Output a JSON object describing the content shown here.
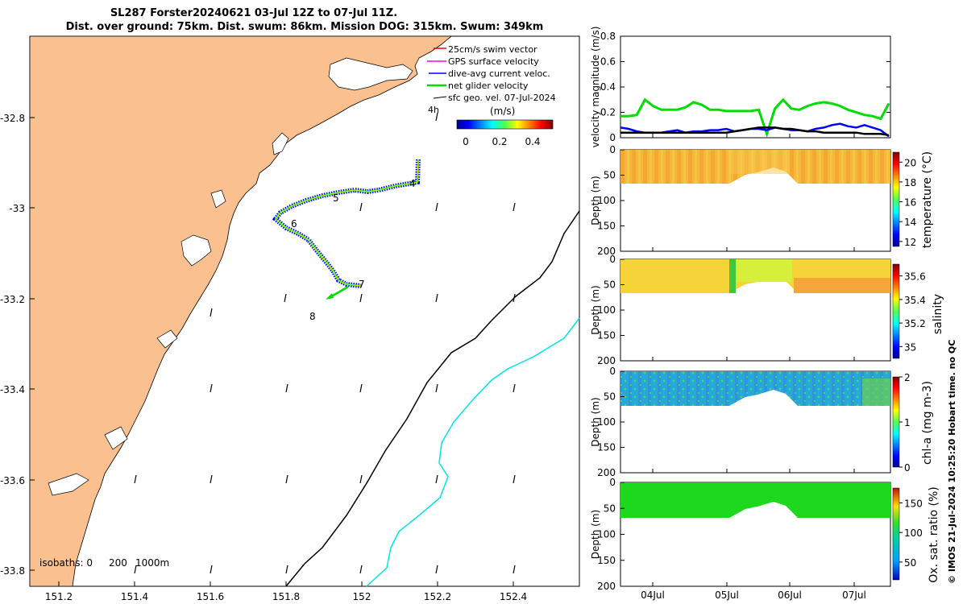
{
  "header": {
    "line1": "SL287 Forster20240621 03-Jul 12Z to 07-Jul 11Z.",
    "line2": "Dist. over ground: 75km. Dist. swum: 86km. Mission DOG: 315km. Swum: 349km"
  },
  "credit": "© IMOS 21-Jul-2024 10:25:20 Hobart time. no QC",
  "colors": {
    "land": "#fbc08f",
    "sea": "#ffffff",
    "swim_vector": "#ff0000",
    "gps_velocity": "#ff00ff",
    "dive_avg": "#0000ff",
    "net_velocity": "#00dd00",
    "isobath_200": "#000000",
    "isobath_1000": "#00e5e5"
  },
  "map": {
    "lon_ticks": [
      "151.2",
      "151.4",
      "151.6",
      "151.8",
      "152",
      "152.2",
      "152.4"
    ],
    "lat_ticks": [
      "-32.8",
      "-33",
      "-33.2",
      "-33.4",
      "-33.6",
      "-33.8"
    ],
    "legend": {
      "items": [
        "25cm/s swim vector",
        "GPS surface velocity",
        "dive-avg current veloc.",
        "net glider velocity",
        "sfc geo. vel. 07-Jul-2024"
      ],
      "hour_label": "4h",
      "unit": "(m/s)",
      "cb_ticks": [
        "0",
        "0.2",
        "0.4"
      ]
    },
    "isobaths_label": "isobaths: 0",
    "isobath_levels": [
      "200",
      "1000m"
    ],
    "day_labels": [
      "4",
      "5",
      "6",
      "7",
      "8"
    ]
  },
  "chart_data": [
    {
      "type": "line",
      "ylabel": "velocity magnitude (m/s)",
      "y_ticks": [
        "0",
        "0.2",
        "0.4",
        "0.6",
        "0.8"
      ],
      "ylim": [
        0,
        0.8
      ],
      "x_ticks": [
        "04Jul",
        "05Jul",
        "06Jul",
        "07Jul"
      ],
      "series": [
        {
          "name": "net glider velocity",
          "color": "#00dd00",
          "values": [
            0.17,
            0.17,
            0.18,
            0.3,
            0.25,
            0.22,
            0.22,
            0.22,
            0.24,
            0.28,
            0.26,
            0.22,
            0.22,
            0.21,
            0.21,
            0.21,
            0.21,
            0.22,
            0.03,
            0.23,
            0.3,
            0.23,
            0.22,
            0.25,
            0.27,
            0.28,
            0.27,
            0.25,
            0.22,
            0.2,
            0.18,
            0.17,
            0.15,
            0.27
          ]
        },
        {
          "name": "dive-avg current",
          "color": "#0000ff",
          "values": [
            0.08,
            0.07,
            0.05,
            0.04,
            0.04,
            0.04,
            0.05,
            0.06,
            0.04,
            0.05,
            0.05,
            0.06,
            0.06,
            0.07,
            0.05,
            0.06,
            0.07,
            0.07,
            0.06,
            0.08,
            0.07,
            0.06,
            0.06,
            0.05,
            0.07,
            0.08,
            0.1,
            0.11,
            0.09,
            0.08,
            0.1,
            0.08,
            0.06,
            0.01
          ]
        },
        {
          "name": "sfc geo. velocity",
          "color": "#000000",
          "values": [
            0.04,
            0.04,
            0.04,
            0.04,
            0.04,
            0.04,
            0.04,
            0.04,
            0.04,
            0.04,
            0.04,
            0.04,
            0.04,
            0.04,
            0.05,
            0.06,
            0.07,
            0.08,
            0.08,
            0.08,
            0.07,
            0.07,
            0.06,
            0.05,
            0.05,
            0.04,
            0.04,
            0.04,
            0.04,
            0.04,
            0.03,
            0.03,
            0.03,
            0.02
          ]
        }
      ]
    },
    {
      "type": "heatmap",
      "variable": "temperature (°C)",
      "ylabel": "Depth (m)",
      "y_ticks": [
        "0",
        "50",
        "100",
        "150",
        "200"
      ],
      "cb_ticks": [
        "20",
        "18",
        "16",
        "14",
        "12"
      ],
      "clim": [
        11.5,
        21
      ],
      "dominant_value": 19.2
    },
    {
      "type": "heatmap",
      "variable": "salinity",
      "ylabel": "Depth (m)",
      "y_ticks": [
        "0",
        "50",
        "100",
        "150",
        "200"
      ],
      "cb_ticks": [
        "35.6",
        "35.4",
        "35.2",
        "35"
      ],
      "clim": [
        34.9,
        35.7
      ],
      "dominant_value": 35.55
    },
    {
      "type": "heatmap",
      "variable": "chl-a (mg m-3)",
      "ylabel": "Depth (m)",
      "y_ticks": [
        "0",
        "50",
        "100",
        "150",
        "200"
      ],
      "cb_ticks": [
        "2",
        "1",
        "0"
      ],
      "clim": [
        0,
        2
      ],
      "dominant_value": 0.6
    },
    {
      "type": "heatmap",
      "variable": "Ox. sat. ratio (%)",
      "ylabel": "Depth (m)",
      "y_ticks": [
        "0",
        "50",
        "100",
        "150",
        "200"
      ],
      "cb_ticks": [
        "150",
        "100",
        "50"
      ],
      "clim": [
        20,
        175
      ],
      "dominant_value": 110,
      "x_ticks": [
        "04Jul",
        "05Jul",
        "06Jul",
        "07Jul"
      ]
    }
  ]
}
